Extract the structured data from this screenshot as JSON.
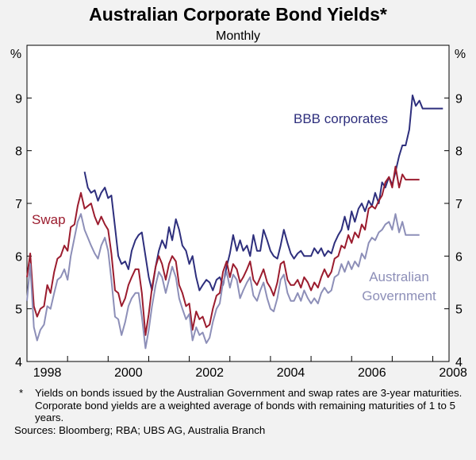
{
  "chart_data": {
    "type": "line",
    "title": "Australian Corporate Bond Yields*",
    "subtitle": "Monthly",
    "y_unit_label": "%",
    "ylim": [
      4,
      10
    ],
    "yticks": [
      4,
      5,
      6,
      7,
      8,
      9
    ],
    "xlim": [
      1998.0,
      2008.4
    ],
    "xticks": [
      "1998",
      "2000",
      "2002",
      "2004",
      "2006",
      "2008"
    ],
    "grid": false,
    "series": [
      {
        "name": "BBB corporates",
        "color": "#2e2f7d",
        "x": [
          1999.42,
          1999.5,
          1999.58,
          1999.67,
          1999.75,
          1999.83,
          1999.92,
          2000.0,
          2000.08,
          2000.17,
          2000.25,
          2000.33,
          2000.42,
          2000.5,
          2000.58,
          2000.67,
          2000.75,
          2000.83,
          2000.92,
          2001.0,
          2001.08,
          2001.17,
          2001.25,
          2001.33,
          2001.42,
          2001.5,
          2001.58,
          2001.67,
          2001.75,
          2001.83,
          2001.92,
          2002.0,
          2002.08,
          2002.17,
          2002.25,
          2002.33,
          2002.42,
          2002.5,
          2002.58,
          2002.67,
          2002.75,
          2002.83,
          2002.92,
          2003.0,
          2003.08,
          2003.17,
          2003.25,
          2003.33,
          2003.42,
          2003.5,
          2003.58,
          2003.67,
          2003.75,
          2003.83,
          2003.92,
          2004.0,
          2004.08,
          2004.17,
          2004.25,
          2004.33,
          2004.42,
          2004.5,
          2004.58,
          2004.67,
          2004.75,
          2004.83,
          2004.92,
          2005.0,
          2005.08,
          2005.17,
          2005.25,
          2005.33,
          2005.42,
          2005.5,
          2005.58,
          2005.67,
          2005.75,
          2005.83,
          2005.92,
          2006.0,
          2006.08,
          2006.17,
          2006.25,
          2006.33,
          2006.42,
          2006.5,
          2006.58,
          2006.67,
          2006.75,
          2006.83,
          2006.92,
          2007.0,
          2007.08,
          2007.17,
          2007.25,
          2007.33,
          2007.42,
          2007.5,
          2007.58,
          2007.67,
          2007.75,
          2007.83,
          2007.92,
          2008.0,
          2008.08,
          2008.17,
          2008.25
        ],
        "values": [
          7.6,
          7.3,
          7.2,
          7.25,
          7.05,
          7.2,
          7.3,
          7.1,
          7.15,
          6.55,
          6.0,
          5.85,
          5.9,
          5.75,
          6.1,
          6.3,
          6.4,
          6.45,
          6.0,
          5.6,
          5.35,
          5.8,
          6.1,
          6.3,
          6.15,
          6.55,
          6.3,
          6.7,
          6.5,
          6.2,
          6.1,
          5.85,
          6.0,
          5.6,
          5.35,
          5.45,
          5.55,
          5.5,
          5.35,
          5.55,
          5.6,
          5.45,
          5.8,
          6.05,
          6.4,
          6.1,
          6.3,
          6.1,
          6.2,
          6.0,
          6.4,
          6.1,
          6.1,
          6.5,
          6.3,
          6.1,
          6.0,
          5.95,
          6.2,
          6.5,
          6.25,
          6.05,
          5.95,
          6.05,
          6.1,
          6.0,
          6.0,
          6.0,
          6.15,
          6.05,
          6.15,
          6.0,
          6.1,
          6.05,
          6.25,
          6.4,
          6.5,
          6.75,
          6.5,
          6.85,
          6.65,
          6.9,
          7.0,
          6.85,
          7.05,
          6.95,
          7.2,
          7.0,
          7.4,
          7.3,
          7.5,
          7.35,
          7.6,
          7.9,
          8.1,
          8.1,
          8.4,
          9.05,
          8.85,
          8.95,
          8.8,
          8.8,
          8.8,
          8.8,
          8.8,
          8.8,
          8.8
        ]
      },
      {
        "name": "Swap",
        "color": "#9b1c2e",
        "x": [
          1998.0,
          1998.08,
          1998.17,
          1998.25,
          1998.33,
          1998.42,
          1998.5,
          1998.58,
          1998.67,
          1998.75,
          1998.83,
          1998.92,
          1999.0,
          1999.08,
          1999.17,
          1999.25,
          1999.33,
          1999.42,
          1999.5,
          1999.58,
          1999.67,
          1999.75,
          1999.83,
          1999.92,
          2000.0,
          2000.08,
          2000.17,
          2000.25,
          2000.33,
          2000.42,
          2000.5,
          2000.58,
          2000.67,
          2000.75,
          2000.83,
          2000.92,
          2001.0,
          2001.08,
          2001.17,
          2001.25,
          2001.33,
          2001.42,
          2001.5,
          2001.58,
          2001.67,
          2001.75,
          2001.83,
          2001.92,
          2002.0,
          2002.08,
          2002.17,
          2002.25,
          2002.33,
          2002.42,
          2002.5,
          2002.58,
          2002.67,
          2002.75,
          2002.83,
          2002.92,
          2003.0,
          2003.08,
          2003.17,
          2003.25,
          2003.33,
          2003.42,
          2003.5,
          2003.58,
          2003.67,
          2003.75,
          2003.83,
          2003.92,
          2004.0,
          2004.08,
          2004.17,
          2004.25,
          2004.33,
          2004.42,
          2004.5,
          2004.58,
          2004.67,
          2004.75,
          2004.83,
          2004.92,
          2005.0,
          2005.08,
          2005.17,
          2005.25,
          2005.33,
          2005.42,
          2005.5,
          2005.58,
          2005.67,
          2005.75,
          2005.83,
          2005.92,
          2006.0,
          2006.08,
          2006.17,
          2006.25,
          2006.33,
          2006.42,
          2006.5,
          2006.58,
          2006.67,
          2006.75,
          2006.83,
          2006.92,
          2007.0,
          2007.08,
          2007.17,
          2007.25,
          2007.33,
          2007.42,
          2007.5,
          2007.58,
          2007.67
        ],
        "values": [
          5.6,
          6.05,
          5.05,
          4.85,
          5.0,
          5.05,
          5.45,
          5.3,
          5.7,
          5.95,
          6.0,
          6.2,
          6.1,
          6.55,
          6.6,
          6.95,
          7.2,
          6.9,
          6.95,
          7.0,
          6.75,
          6.6,
          6.75,
          6.6,
          6.5,
          6.05,
          5.35,
          5.3,
          5.05,
          5.2,
          5.45,
          5.6,
          5.75,
          5.75,
          5.3,
          4.5,
          4.9,
          5.4,
          5.8,
          6.0,
          5.85,
          5.55,
          5.85,
          6.0,
          5.9,
          5.45,
          5.3,
          5.05,
          5.1,
          4.6,
          4.95,
          4.8,
          4.85,
          4.65,
          4.7,
          5.0,
          5.25,
          5.3,
          5.7,
          5.9,
          5.6,
          5.85,
          5.75,
          5.5,
          5.6,
          5.75,
          5.9,
          5.55,
          5.45,
          5.6,
          5.75,
          5.5,
          5.4,
          5.25,
          5.5,
          5.85,
          5.9,
          5.55,
          5.45,
          5.45,
          5.55,
          5.4,
          5.6,
          5.5,
          5.35,
          5.5,
          5.4,
          5.6,
          5.75,
          5.6,
          5.7,
          5.95,
          6.0,
          6.2,
          6.15,
          6.4,
          6.25,
          6.45,
          6.35,
          6.6,
          6.5,
          6.9,
          6.95,
          6.9,
          7.05,
          7.15,
          7.4,
          7.5,
          7.3,
          7.7,
          7.3,
          7.55,
          7.45,
          7.45,
          7.45,
          7.45,
          7.45
        ]
      },
      {
        "name": "Australian Government",
        "color": "#8d8fb8",
        "x": [
          1998.0,
          1998.08,
          1998.17,
          1998.25,
          1998.33,
          1998.42,
          1998.5,
          1998.58,
          1998.67,
          1998.75,
          1998.83,
          1998.92,
          1999.0,
          1999.08,
          1999.17,
          1999.25,
          1999.33,
          1999.42,
          1999.5,
          1999.58,
          1999.67,
          1999.75,
          1999.83,
          1999.92,
          2000.0,
          2000.08,
          2000.17,
          2000.25,
          2000.33,
          2000.42,
          2000.5,
          2000.58,
          2000.67,
          2000.75,
          2000.83,
          2000.92,
          2001.0,
          2001.08,
          2001.17,
          2001.25,
          2001.33,
          2001.42,
          2001.5,
          2001.58,
          2001.67,
          2001.75,
          2001.83,
          2001.92,
          2002.0,
          2002.08,
          2002.17,
          2002.25,
          2002.33,
          2002.42,
          2002.5,
          2002.58,
          2002.67,
          2002.75,
          2002.83,
          2002.92,
          2003.0,
          2003.08,
          2003.17,
          2003.25,
          2003.33,
          2003.42,
          2003.5,
          2003.58,
          2003.67,
          2003.75,
          2003.83,
          2003.92,
          2004.0,
          2004.08,
          2004.17,
          2004.25,
          2004.33,
          2004.42,
          2004.5,
          2004.58,
          2004.67,
          2004.75,
          2004.83,
          2004.92,
          2005.0,
          2005.08,
          2005.17,
          2005.25,
          2005.33,
          2005.42,
          2005.5,
          2005.58,
          2005.67,
          2005.75,
          2005.83,
          2005.92,
          2006.0,
          2006.08,
          2006.17,
          2006.25,
          2006.33,
          2006.42,
          2006.5,
          2006.58,
          2006.67,
          2006.75,
          2006.83,
          2006.92,
          2007.0,
          2007.08,
          2007.17,
          2007.25,
          2007.33,
          2007.42,
          2007.5,
          2007.58,
          2007.67
        ],
        "values": [
          5.15,
          5.85,
          4.65,
          4.4,
          4.6,
          4.7,
          5.05,
          5.0,
          5.3,
          5.55,
          5.6,
          5.75,
          5.55,
          6.0,
          6.35,
          6.65,
          6.8,
          6.5,
          6.35,
          6.2,
          6.05,
          5.95,
          6.2,
          6.35,
          6.1,
          5.55,
          4.85,
          4.8,
          4.5,
          4.75,
          5.05,
          5.2,
          5.3,
          5.3,
          4.85,
          4.25,
          4.6,
          5.05,
          5.45,
          5.7,
          5.6,
          5.3,
          5.55,
          5.8,
          5.6,
          5.2,
          5.0,
          4.8,
          4.9,
          4.4,
          4.65,
          4.5,
          4.55,
          4.35,
          4.45,
          4.75,
          5.0,
          5.1,
          5.5,
          5.7,
          5.4,
          5.65,
          5.55,
          5.2,
          5.35,
          5.5,
          5.6,
          5.25,
          5.15,
          5.35,
          5.5,
          5.2,
          5.0,
          4.95,
          5.2,
          5.55,
          5.65,
          5.3,
          5.15,
          5.15,
          5.3,
          5.15,
          5.35,
          5.2,
          5.1,
          5.2,
          5.1,
          5.3,
          5.4,
          5.3,
          5.35,
          5.6,
          5.65,
          5.85,
          5.7,
          5.9,
          5.75,
          5.9,
          5.8,
          6.05,
          5.95,
          6.25,
          6.35,
          6.3,
          6.45,
          6.5,
          6.6,
          6.65,
          6.5,
          6.8,
          6.45,
          6.65,
          6.4,
          6.4,
          6.4,
          6.4,
          6.4
        ]
      }
    ],
    "legend": "inline labels"
  },
  "labels": {
    "bbb": "BBB corporates",
    "swap": "Swap",
    "gov_line1": "Australian",
    "gov_line2": "Government"
  },
  "notes": {
    "marker": "*",
    "footnote": "Yields on bonds issued by the Australian Government and swap rates are 3-year maturities. Corporate bond yields are a weighted average of bonds with remaining maturities of 1 to 5 years.",
    "sources": "Sources: Bloomberg; RBA; UBS AG, Australia Branch"
  }
}
